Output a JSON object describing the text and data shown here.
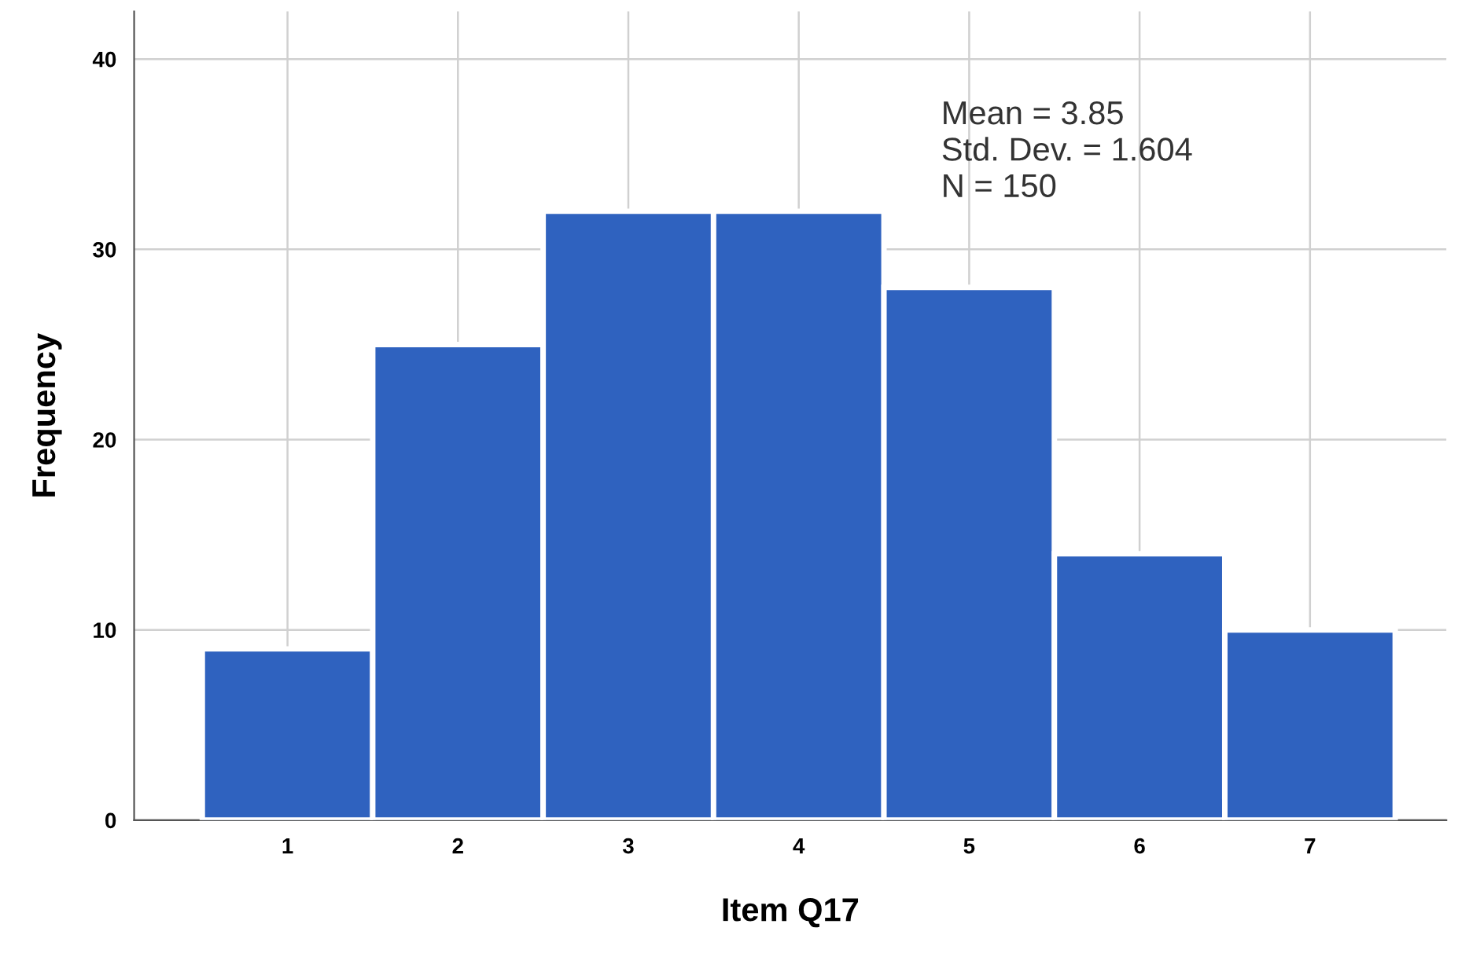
{
  "chart_data": {
    "type": "histogram",
    "xlabel": "Item Q17",
    "ylabel": "Frequency",
    "bins": [
      0.5,
      1.5,
      2.5,
      3.5,
      4.5,
      5.5,
      6.5,
      7.5
    ],
    "values": [
      9,
      25,
      32,
      32,
      28,
      14,
      10
    ],
    "color": "#2f62bf",
    "xlim": [
      0.1,
      7.8
    ],
    "xticks": [
      1,
      2,
      3,
      4,
      5,
      6,
      7
    ],
    "ylim": [
      0,
      42.5
    ],
    "yticks": [
      0,
      10,
      20,
      30,
      40
    ],
    "grid": true,
    "annotations": [
      "Mean = 3.85",
      "Std. Dev. = 1.604",
      "N = 150"
    ]
  }
}
